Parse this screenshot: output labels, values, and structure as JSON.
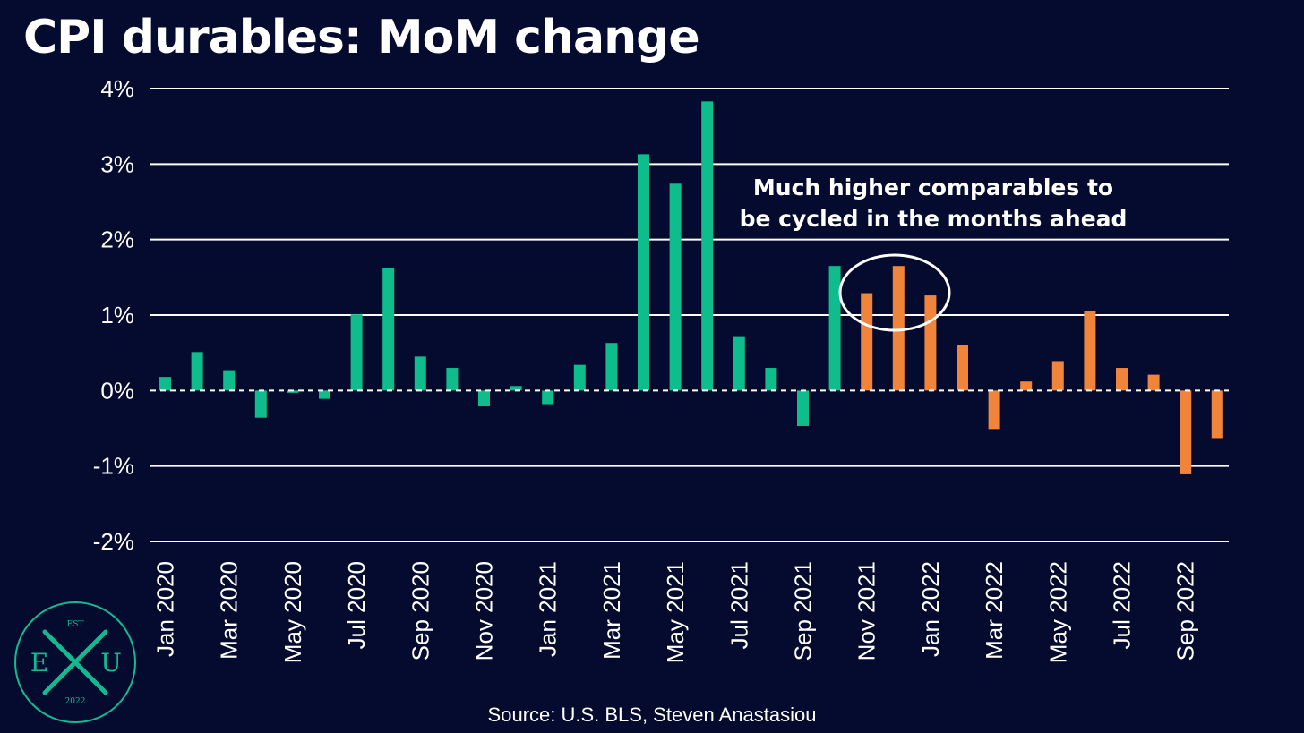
{
  "title": "CPI durables: MoM change",
  "source": "Source: U.S. BLS, Steven Anastasiou",
  "logo": {
    "top": "EST",
    "left": "E",
    "right": "U",
    "bottom": "2022",
    "mark_color": "#14b891"
  },
  "colors": {
    "background": "#050b2e",
    "green": "#0fbd8c",
    "orange": "#f0843a",
    "grid": "#ffffff"
  },
  "chart_data": {
    "type": "bar",
    "ylim": [
      -2,
      4
    ],
    "yticks": [
      -2,
      -1,
      0,
      1,
      2,
      3,
      4
    ],
    "ytick_labels": [
      "-2%",
      "-1%",
      "0%",
      "1%",
      "2%",
      "3%",
      "4%"
    ],
    "xlabel": "",
    "ylabel": "",
    "grid": true,
    "categories": [
      "Jan 2020",
      "Feb 2020",
      "Mar 2020",
      "Apr 2020",
      "May 2020",
      "Jun 2020",
      "Jul 2020",
      "Aug 2020",
      "Sep 2020",
      "Oct 2020",
      "Nov 2020",
      "Dec 2020",
      "Jan 2021",
      "Feb 2021",
      "Mar 2021",
      "Apr 2021",
      "May 2021",
      "Jun 2021",
      "Jul 2021",
      "Aug 2021",
      "Sep 2021",
      "Oct 2021",
      "Nov 2021",
      "Dec 2021",
      "Jan 2022",
      "Feb 2022",
      "Mar 2022",
      "Apr 2022",
      "May 2022",
      "Jun 2022",
      "Jul 2022",
      "Aug 2022",
      "Sep 2022",
      "Oct 2022"
    ],
    "tick_labels": [
      "Jan 2020",
      "",
      "Mar 2020",
      "",
      "May 2020",
      "",
      "Jul 2020",
      "",
      "Sep 2020",
      "",
      "Nov 2020",
      "",
      "Jan 2021",
      "",
      "Mar 2021",
      "",
      "May 2021",
      "",
      "Jul 2021",
      "",
      "Sep 2021",
      "",
      "Nov 2021",
      "",
      "Jan 2022",
      "",
      "Mar 2022",
      "",
      "May 2022",
      "",
      "Jul 2022",
      "",
      "Sep 2022",
      ""
    ],
    "values": [
      0.18,
      0.51,
      0.27,
      -0.36,
      -0.03,
      -0.11,
      1.01,
      1.62,
      0.45,
      0.3,
      -0.21,
      0.06,
      -0.18,
      0.34,
      0.63,
      3.13,
      2.74,
      3.83,
      0.72,
      0.3,
      -0.47,
      1.65,
      1.29,
      1.65,
      1.26,
      0.6,
      -0.51,
      0.12,
      0.39,
      1.05,
      0.3,
      0.21,
      -1.11,
      -0.63
    ],
    "bar_colors": [
      "green",
      "green",
      "green",
      "green",
      "green",
      "green",
      "green",
      "green",
      "green",
      "green",
      "green",
      "green",
      "green",
      "green",
      "green",
      "green",
      "green",
      "green",
      "green",
      "green",
      "green",
      "green",
      "orange",
      "orange",
      "orange",
      "orange",
      "orange",
      "orange",
      "orange",
      "orange",
      "orange",
      "orange",
      "orange",
      "orange"
    ],
    "annotation": "Much higher comparables to be cycled in the months ahead",
    "annotation_lines": [
      "Much higher comparables to",
      "be cycled in the months ahead"
    ]
  }
}
